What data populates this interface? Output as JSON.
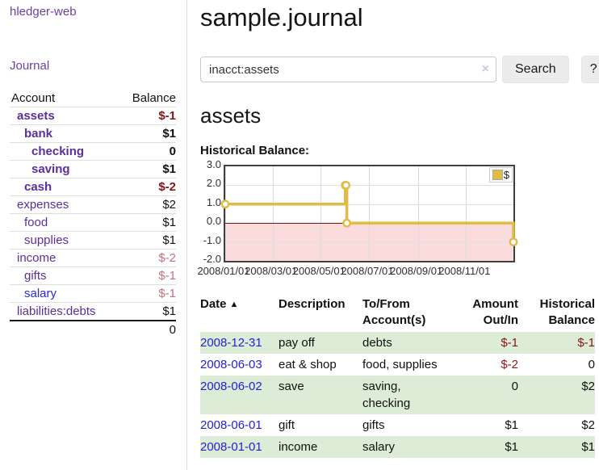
{
  "app": {
    "brand": "hledger-web"
  },
  "sidebar": {
    "nav_journal": "Journal",
    "accounts": {
      "header_account": "Account",
      "header_balance": "Balance",
      "rows": [
        {
          "name": "assets",
          "balance": "$-1"
        },
        {
          "name": "bank",
          "balance": "$1"
        },
        {
          "name": "checking",
          "balance": "0"
        },
        {
          "name": "saving",
          "balance": "$1"
        },
        {
          "name": "cash",
          "balance": "$-2"
        },
        {
          "name": "expenses",
          "balance": "$2"
        },
        {
          "name": "food",
          "balance": "$1"
        },
        {
          "name": "supplies",
          "balance": "$1"
        },
        {
          "name": "income",
          "balance": "$-2"
        },
        {
          "name": "gifts",
          "balance": "$-1"
        },
        {
          "name": "salary",
          "balance": "$-1"
        },
        {
          "name": "liabilities:debts",
          "balance": "$1"
        }
      ],
      "total": "0"
    }
  },
  "header": {
    "title": "sample.journal"
  },
  "search": {
    "query": "inacct:assets",
    "clear_icon": "×",
    "button_label": "Search",
    "help_label": "?"
  },
  "account_page": {
    "title": "assets",
    "chart_heading": "Historical Balance:"
  },
  "chart_data": {
    "type": "line",
    "step": true,
    "title": "Historical Balance:",
    "series": [
      {
        "name": "$",
        "points": [
          {
            "date": "2008-01-01",
            "value": 1
          },
          {
            "date": "2008-06-01",
            "value": 2
          },
          {
            "date": "2008-06-02",
            "value": 2
          },
          {
            "date": "2008-06-03",
            "value": 0
          },
          {
            "date": "2008-12-31",
            "value": -1
          }
        ]
      }
    ],
    "xlim": [
      "2008-01-01",
      "2008-12-31"
    ],
    "ylim": [
      -2,
      3
    ],
    "x_ticks": [
      "2008/01/01",
      "2008/03/01",
      "2008/05/01",
      "2008/07/01",
      "2008/09/01",
      "2008/11/01"
    ],
    "y_ticks": [
      3.0,
      2.0,
      1.0,
      0.0,
      -1.0,
      -2.0
    ],
    "legend_position": "top-right",
    "grid": true,
    "colors": {
      "line": "#e3ba45",
      "marker_fill": "#ffffff",
      "negative_region": "#fbdcdc",
      "zero_line": "#7c1216"
    }
  },
  "register_table": {
    "headers": {
      "date": "Date",
      "sort_icon": "▲",
      "description": "Description",
      "accounts": "To/From Account(s)",
      "amount": "Amount Out/In",
      "balance": "Historical Balance"
    },
    "rows": [
      {
        "date": "2008-12-31",
        "description": "pay off",
        "accounts": "debts",
        "amount": "$-1",
        "balance": "$-1"
      },
      {
        "date": "2008-06-03",
        "description": "eat & shop",
        "accounts": "food, supplies",
        "amount": "$-2",
        "balance": "0"
      },
      {
        "date": "2008-06-02",
        "description": "save",
        "accounts": "saving, checking",
        "amount": "0",
        "balance": "$2"
      },
      {
        "date": "2008-06-01",
        "description": "gift",
        "accounts": "gifts",
        "amount": "$1",
        "balance": "$2"
      },
      {
        "date": "2008-01-01",
        "description": "income",
        "accounts": "salary",
        "amount": "$1",
        "balance": "$1"
      }
    ]
  }
}
